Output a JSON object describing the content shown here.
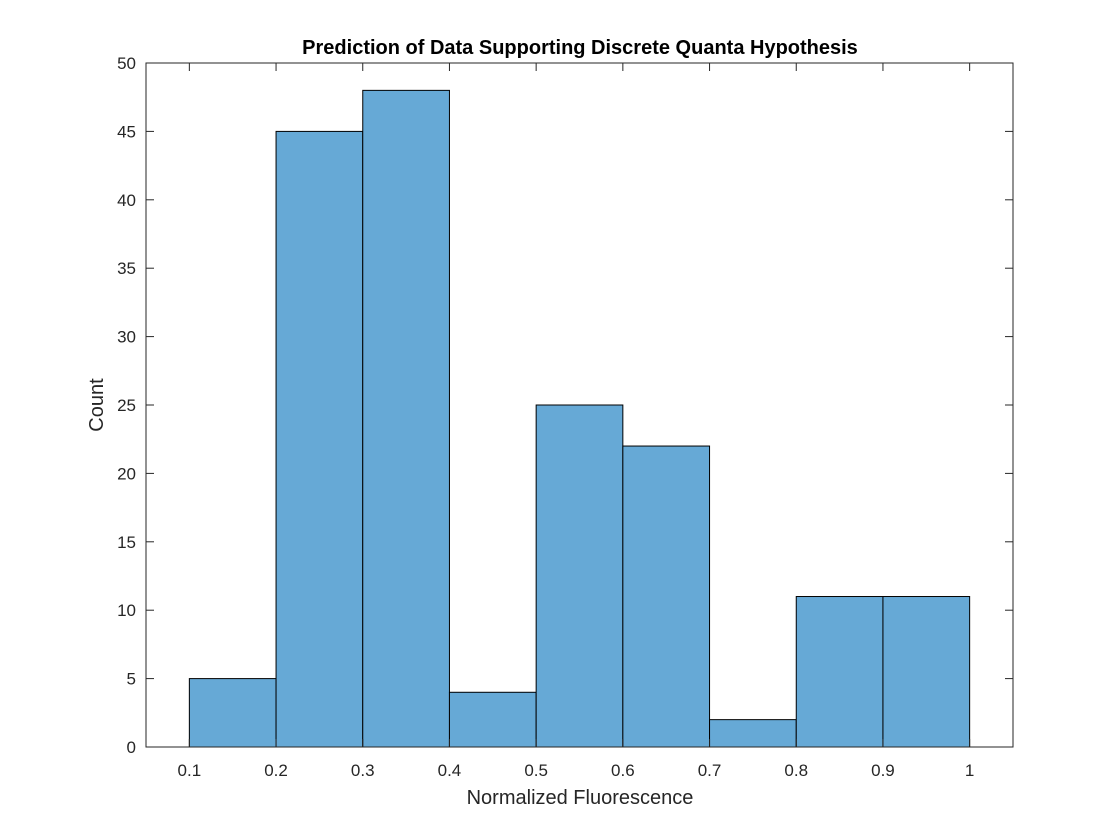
{
  "chart_data": {
    "type": "bar",
    "subtype": "histogram",
    "title": "Prediction of Data Supporting Discrete Quanta Hypothesis",
    "xlabel": "Normalized Fluorescence",
    "ylabel": "Count",
    "xlim": [
      0.05,
      1.05
    ],
    "ylim": [
      0,
      50
    ],
    "bin_edges": [
      0.1,
      0.2,
      0.3,
      0.4,
      0.5,
      0.6,
      0.7,
      0.8,
      0.9,
      1.0
    ],
    "values": [
      5,
      45,
      48,
      4,
      25,
      22,
      2,
      11,
      11
    ],
    "x_ticks": [
      0.1,
      0.2,
      0.3,
      0.4,
      0.5,
      0.6,
      0.7,
      0.8,
      0.9,
      1.0
    ],
    "x_tick_labels": [
      "0.1",
      "0.2",
      "0.3",
      "0.4",
      "0.5",
      "0.6",
      "0.7",
      "0.8",
      "0.9",
      "1"
    ],
    "y_ticks": [
      0,
      5,
      10,
      15,
      20,
      25,
      30,
      35,
      40,
      45,
      50
    ],
    "y_tick_labels": [
      "0",
      "5",
      "10",
      "15",
      "20",
      "25",
      "30",
      "35",
      "40",
      "45",
      "50"
    ],
    "bar_color": "#66a9d6",
    "edge_color": "#000000",
    "grid": false,
    "legend": false
  }
}
